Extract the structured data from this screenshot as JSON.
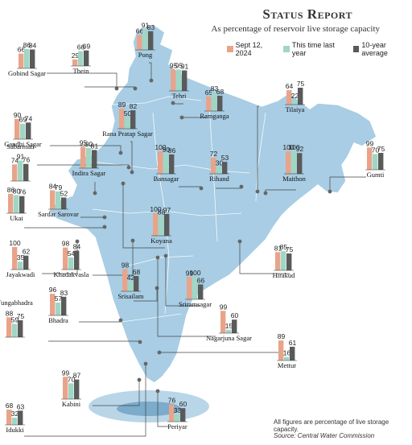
{
  "header": {
    "title": "Status Report",
    "subtitle": "As percentage of reservoir live storage capacity"
  },
  "colors": {
    "current": "#e8a48a",
    "last_year": "#9fd6c4",
    "ten_year": "#5a5a5a",
    "map": "#a8cde4",
    "leader": "#444444"
  },
  "footnote": "All figures are percentage of live storage capacity.",
  "source": "Source: Central Water Commission",
  "chart_data": {
    "type": "bar",
    "title": "Status Report",
    "subtitle": "As percentage of reservoir live storage capacity",
    "ylim": [
      0,
      100
    ],
    "series": [
      {
        "name": "Sept 12, 2024"
      },
      {
        "name": "This time last year"
      },
      {
        "name": "10-year average"
      }
    ],
    "reservoirs": [
      {
        "name": "Gobind Sagar",
        "values": [
          66,
          86,
          84
        ]
      },
      {
        "name": "Thein",
        "values": [
          29,
          66,
          69
        ]
      },
      {
        "name": "Pong",
        "values": [
          66,
          91,
          83
        ]
      },
      {
        "name": "Tehri",
        "values": [
          95,
          95,
          91
        ]
      },
      {
        "name": "Ramganga",
        "values": [
          65,
          83,
          68
        ]
      },
      {
        "name": "Tilaiya",
        "values": [
          64,
          22,
          75
        ]
      },
      {
        "name": "Gandhi Sagar",
        "values": [
          90,
          69,
          74
        ]
      },
      {
        "name": "Rana Pratap Sagar",
        "values": [
          89,
          50,
          82
        ]
      },
      {
        "name": "Indira Sagar",
        "values": [
          95,
          90,
          81
        ]
      },
      {
        "name": "Bansagar",
        "values": [
          100,
          90,
          86
        ]
      },
      {
        "name": "Rihand",
        "values": [
          72,
          30,
          53
        ]
      },
      {
        "name": "Maithon",
        "values": [
          100,
          100,
          92
        ]
      },
      {
        "name": "Gumti",
        "values": [
          99,
          70,
          75
        ]
      },
      {
        "name": "Sabarmati",
        "values": [
          74,
          91,
          76
        ]
      },
      {
        "name": "Sardar Sarovar",
        "values": [
          84,
          79,
          52
        ]
      },
      {
        "name": "Ukai",
        "values": [
          86,
          80,
          76
        ]
      },
      {
        "name": "Koyana",
        "values": [
          100,
          88,
          97
        ]
      },
      {
        "name": "Jayakwadi",
        "values": [
          100,
          35,
          62
        ]
      },
      {
        "name": "Khadakvasla",
        "values": [
          98,
          54,
          84
        ]
      },
      {
        "name": "Hirakud",
        "values": [
          81,
          85,
          75
        ]
      },
      {
        "name": "Srisailam",
        "values": [
          98,
          42,
          68
        ]
      },
      {
        "name": "Sriramsagar",
        "values": [
          99,
          100,
          66
        ]
      },
      {
        "name": "Bhadra",
        "values": [
          96,
          57,
          83
        ]
      },
      {
        "name": "Tungabhadra",
        "values": [
          88,
          59,
          75
        ]
      },
      {
        "name": "Nagarjuna Sagar",
        "values": [
          99,
          15,
          60
        ]
      },
      {
        "name": "Mettur",
        "values": [
          89,
          16,
          61
        ]
      },
      {
        "name": "Kabini",
        "values": [
          99,
          70,
          87
        ]
      },
      {
        "name": "Idukki",
        "values": [
          68,
          32,
          63
        ]
      },
      {
        "name": "Periyar",
        "values": [
          76,
          33,
          60
        ]
      }
    ]
  }
}
